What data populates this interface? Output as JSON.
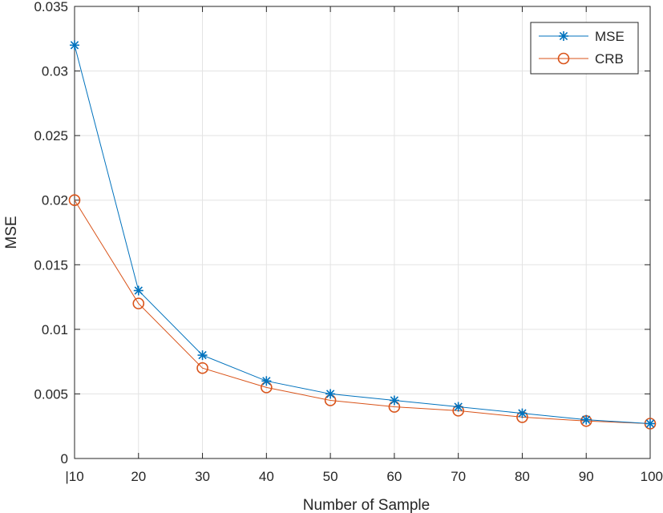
{
  "chart_data": {
    "type": "line",
    "title": "",
    "xlabel": "Number of Sample",
    "ylabel": "MSE",
    "x": [
      10,
      20,
      30,
      40,
      50,
      60,
      70,
      80,
      90,
      100
    ],
    "xlim": [
      10,
      100
    ],
    "ylim": [
      0,
      0.035
    ],
    "xticks": [
      10,
      20,
      30,
      40,
      50,
      60,
      70,
      80,
      90,
      100
    ],
    "xtick_labels": [
      "|10",
      "20",
      "30",
      "40",
      "50",
      "60",
      "70",
      "80",
      "90",
      "100"
    ],
    "yticks": [
      0,
      0.005,
      0.01,
      0.015,
      0.02,
      0.025,
      0.03,
      0.035
    ],
    "ytick_labels": [
      "0",
      "0.005",
      "0.01",
      "0.015",
      "0.02",
      "0.025",
      "0.03",
      "0.035"
    ],
    "grid": true,
    "legend_position": "top-right",
    "series": [
      {
        "name": "MSE",
        "color": "#0072BD",
        "marker": "asterisk",
        "values": [
          0.032,
          0.013,
          0.008,
          0.006,
          0.005,
          0.0045,
          0.004,
          0.0035,
          0.003,
          0.0027
        ]
      },
      {
        "name": "CRB",
        "color": "#D95319",
        "marker": "circle",
        "values": [
          0.02,
          0.012,
          0.007,
          0.0055,
          0.0045,
          0.004,
          0.0037,
          0.0032,
          0.0029,
          0.0027
        ]
      }
    ]
  }
}
